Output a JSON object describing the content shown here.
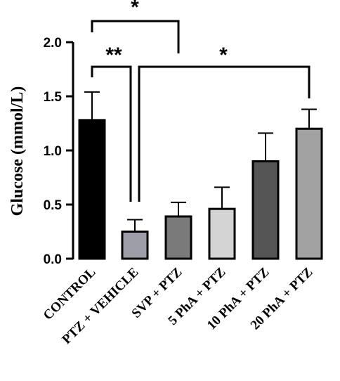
{
  "chart_data": {
    "type": "bar",
    "ylabel": "Glucose (mmol/L)",
    "ylim": [
      0,
      2.0
    ],
    "yticks": [
      "0.0",
      "0.5",
      "1.0",
      "1.5",
      "2.0"
    ],
    "categories": [
      "CONTROL",
      "PTZ + VEHICLE",
      "SVP + PTZ",
      "5 PhA + PTZ",
      "10 PhA + PTZ",
      "20 PhA + PTZ"
    ],
    "values": [
      1.28,
      0.25,
      0.39,
      0.46,
      0.9,
      1.2
    ],
    "errors": [
      0.26,
      0.11,
      0.13,
      0.2,
      0.26,
      0.18
    ],
    "colors": [
      "#000000",
      "#9e9ea8",
      "#7a7a7a",
      "#d4d4d4",
      "#555555",
      "#a2a2a2"
    ],
    "significance": [
      {
        "from": "CONTROL",
        "to": "SVP + PTZ",
        "label": "*"
      },
      {
        "from": "CONTROL",
        "to": "PTZ + VEHICLE",
        "label": "**"
      },
      {
        "from": "PTZ + VEHICLE",
        "to": "20 PhA + PTZ",
        "label": "*"
      }
    ]
  }
}
